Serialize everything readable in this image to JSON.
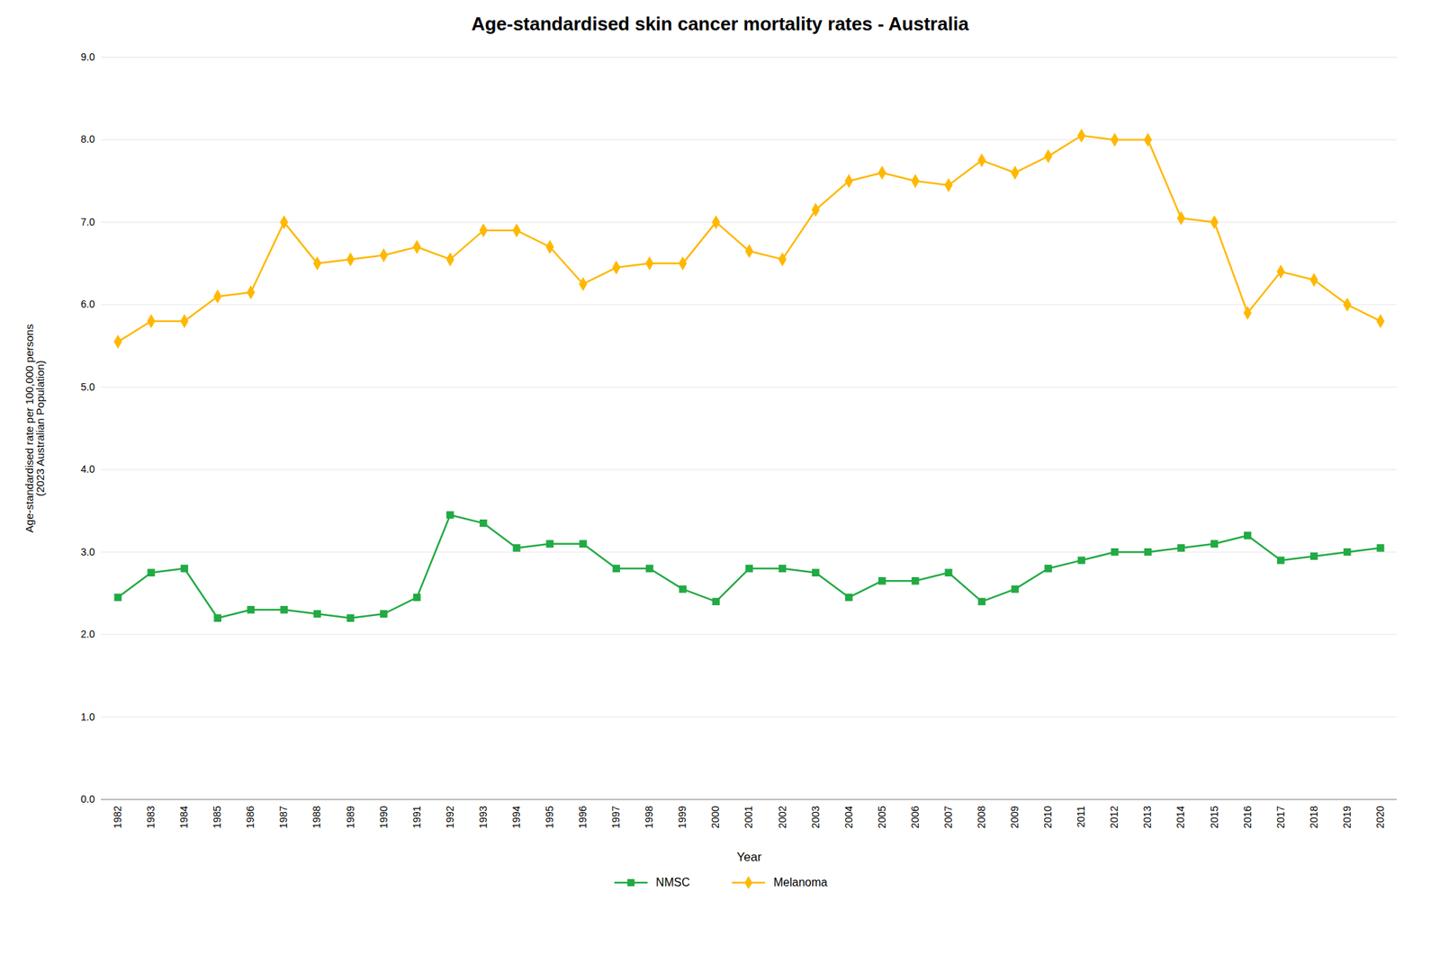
{
  "chart_data": {
    "type": "line",
    "title": "Age-standardised skin cancer mortality rates - Australia",
    "xlabel": "Year",
    "ylabel": "Age-standardised rate per 100,000 persons\n(2023 Australian Population)",
    "x": [
      1982,
      1983,
      1984,
      1985,
      1986,
      1987,
      1988,
      1989,
      1990,
      1991,
      1992,
      1993,
      1994,
      1995,
      1996,
      1997,
      1998,
      1999,
      2000,
      2001,
      2002,
      2003,
      2004,
      2005,
      2006,
      2007,
      2008,
      2009,
      2010,
      2011,
      2012,
      2013,
      2014,
      2015,
      2016,
      2017,
      2018,
      2019,
      2020
    ],
    "series": [
      {
        "name": "NMSC",
        "color": "#22AA44",
        "marker": "square",
        "values": [
          2.45,
          2.75,
          2.8,
          2.2,
          2.3,
          2.3,
          2.25,
          2.2,
          2.25,
          2.45,
          3.45,
          3.35,
          3.05,
          3.1,
          3.1,
          2.8,
          2.8,
          2.55,
          2.4,
          2.8,
          2.8,
          2.75,
          2.45,
          2.65,
          2.65,
          2.75,
          2.4,
          2.55,
          2.8,
          2.9,
          3.0,
          3.0,
          3.05,
          3.1,
          3.2,
          2.9,
          2.95,
          3.0,
          3.05
        ]
      },
      {
        "name": "Melanoma",
        "color": "#FFB800",
        "marker": "diamond",
        "values": [
          5.55,
          5.8,
          5.8,
          6.1,
          6.15,
          7.0,
          6.5,
          6.55,
          6.6,
          6.7,
          6.55,
          6.9,
          6.9,
          6.7,
          6.25,
          6.45,
          6.5,
          6.5,
          7.0,
          6.65,
          6.55,
          7.15,
          7.5,
          7.6,
          7.5,
          7.45,
          7.75,
          7.6,
          7.8,
          8.05,
          8.0,
          8.0,
          7.05,
          7.0,
          5.9,
          6.4,
          6.3,
          6.0,
          5.8
        ]
      }
    ],
    "xlim": [
      1981.5,
      2020.5
    ],
    "xticks": [
      1982,
      1983,
      1984,
      1985,
      1986,
      1987,
      1988,
      1989,
      1990,
      1991,
      1992,
      1993,
      1994,
      1995,
      1996,
      1997,
      1998,
      1999,
      2000,
      2001,
      2002,
      2003,
      2004,
      2005,
      2006,
      2007,
      2008,
      2009,
      2010,
      2011,
      2012,
      2013,
      2014,
      2015,
      2016,
      2017,
      2018,
      2019,
      2020
    ],
    "ylim": [
      0.0,
      9.0
    ],
    "yticks": [
      {
        "value": 0,
        "label": "0.0"
      },
      {
        "value": 1,
        "label": "1.0"
      },
      {
        "value": 2,
        "label": "2.0"
      },
      {
        "value": 3,
        "label": "3.0"
      },
      {
        "value": 4,
        "label": "4.0"
      },
      {
        "value": 5,
        "label": "5.0"
      },
      {
        "value": 6,
        "label": "6.0"
      },
      {
        "value": 7,
        "label": "7.0"
      },
      {
        "value": 8,
        "label": "8.0"
      },
      {
        "value": 9,
        "label": "9.0"
      }
    ],
    "grid": true,
    "legend": "bottom"
  }
}
